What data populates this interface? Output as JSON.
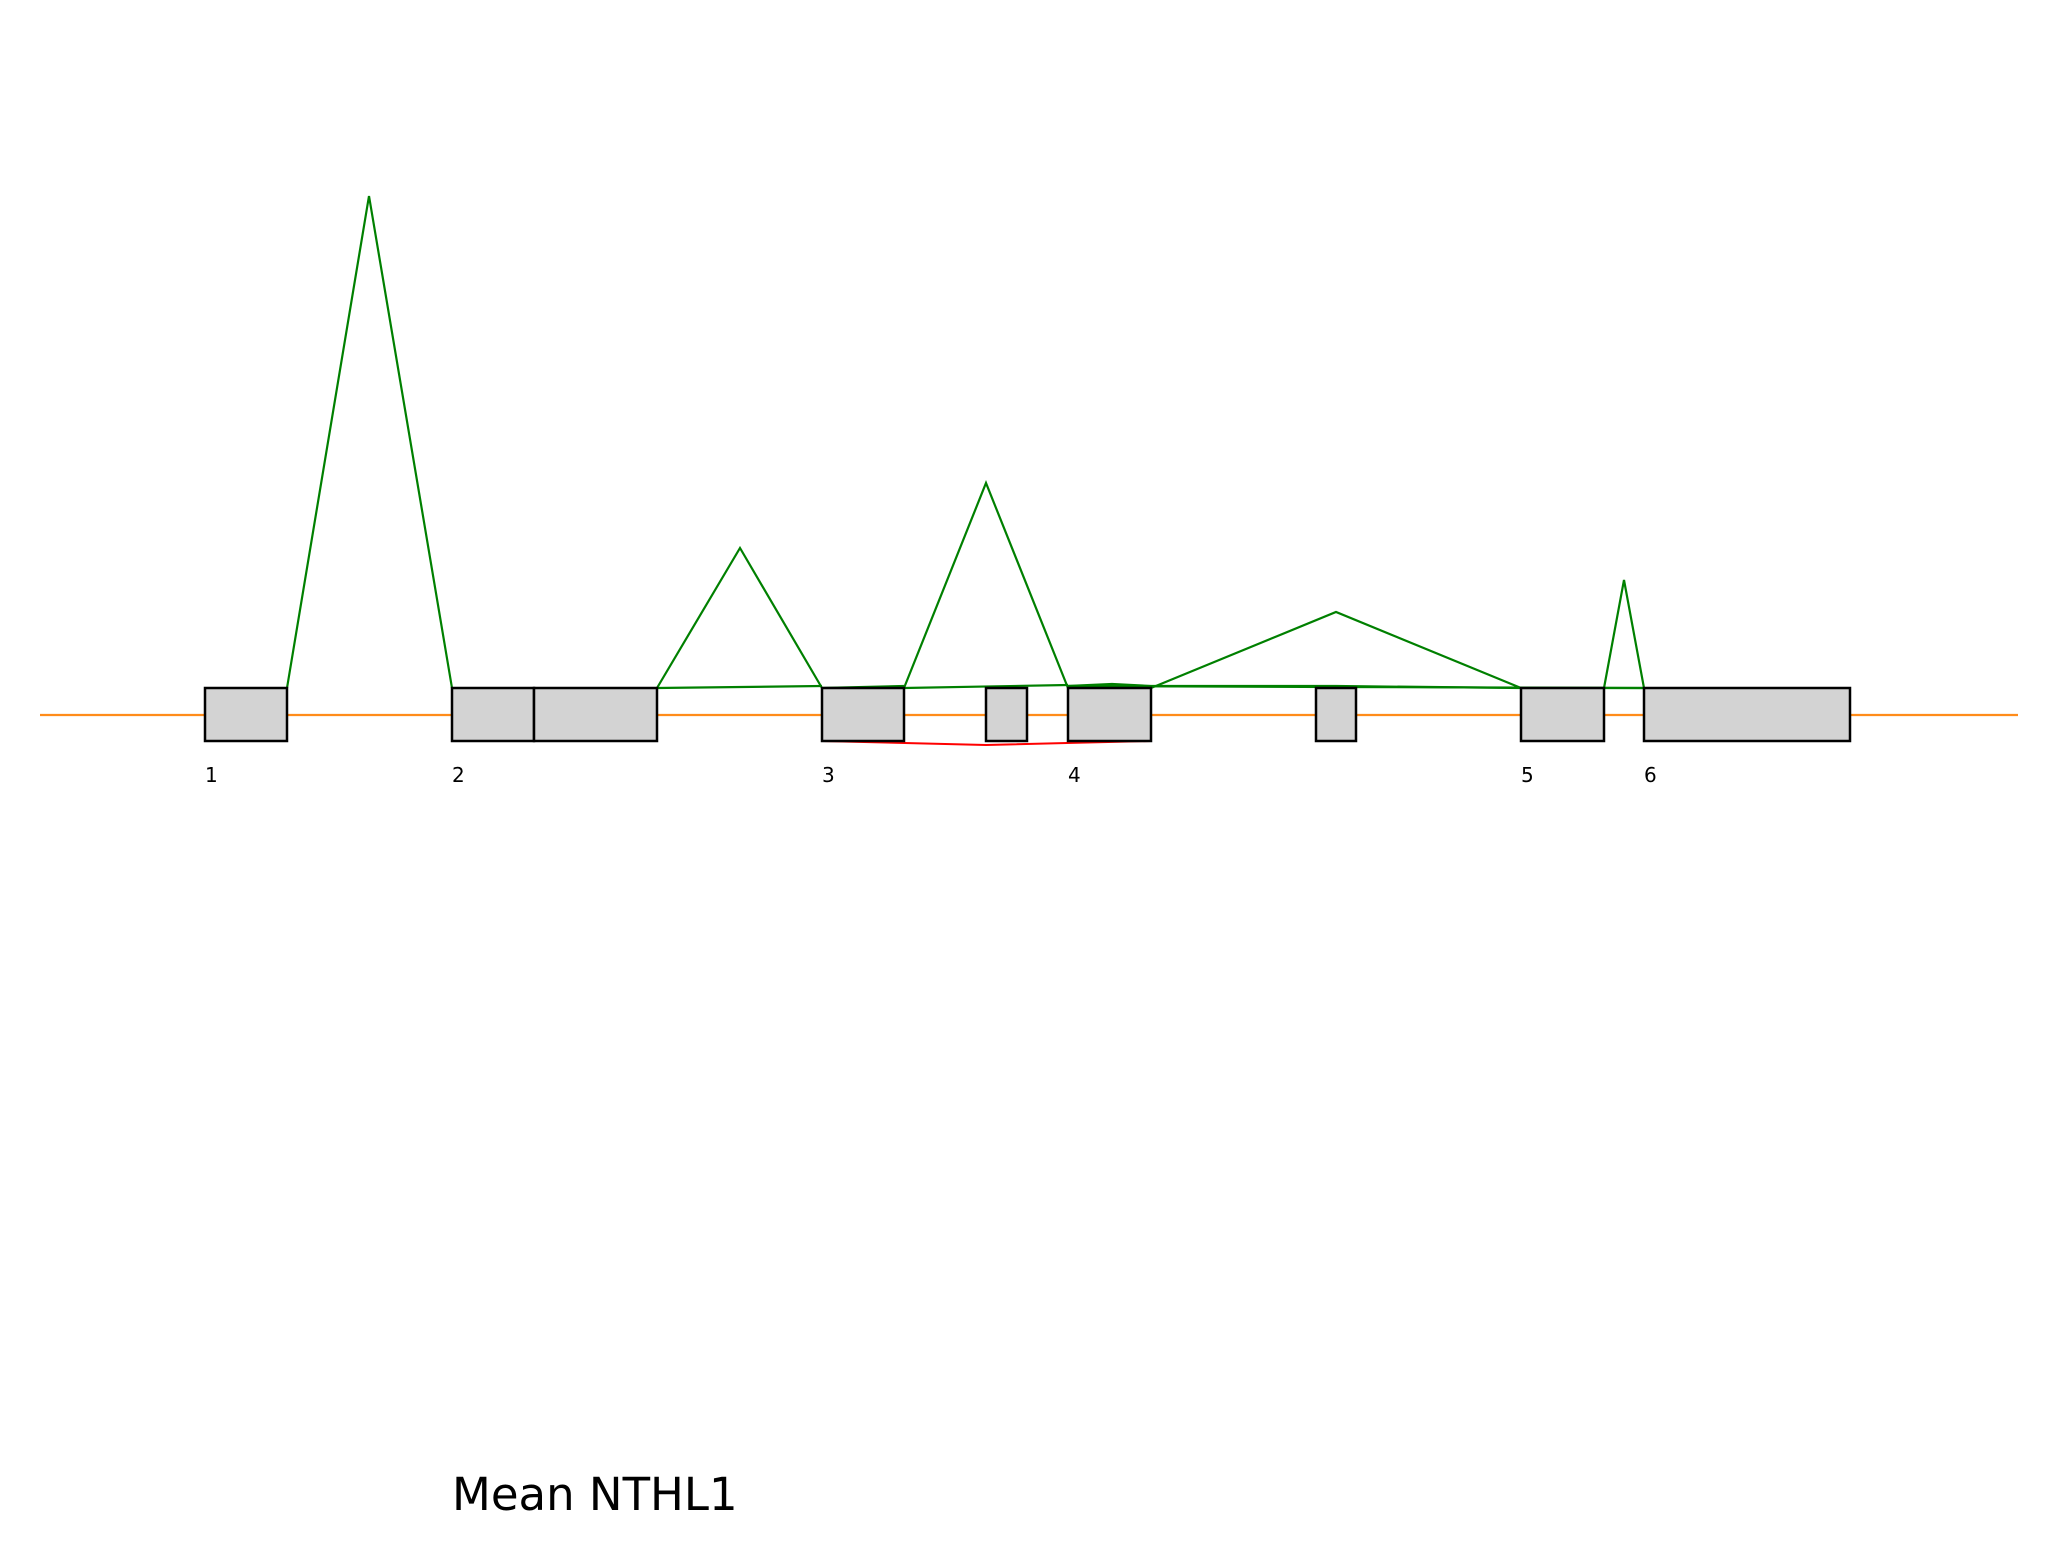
{
  "title": "Mean NTHL1",
  "colors": {
    "backbone": "#ff8c1a",
    "exon_fill": "#d3d3d3",
    "exon_stroke": "#000000",
    "junction_up": "#008000",
    "junction_down": "#ff0000",
    "background": "#ffffff"
  },
  "exon_labels": [
    {
      "text": "1"
    },
    {
      "text": "2"
    },
    {
      "text": "3"
    },
    {
      "text": "4"
    },
    {
      "text": "5"
    },
    {
      "text": "6"
    }
  ]
}
